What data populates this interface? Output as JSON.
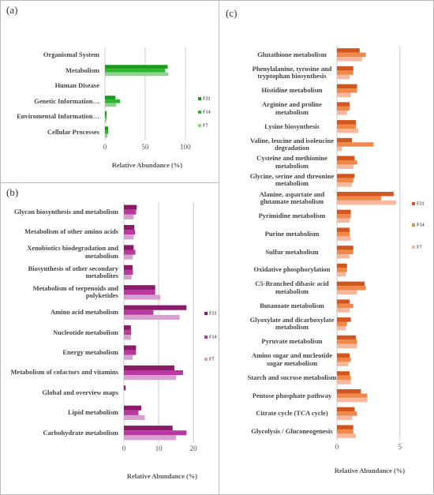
{
  "chart_data": [
    {
      "type": "barh",
      "label": "(a)",
      "xlabel": "Relative Abundance (%)",
      "categories": [
        "Organismal System",
        "Metabolism",
        "Human Disease",
        "Genetic Information…",
        "Enviromental Information…",
        "Cellular Processes"
      ],
      "series": [
        {
          "name": "F21",
          "color": "#1a9a1a",
          "values": [
            0,
            78,
            0,
            13,
            2,
            4
          ]
        },
        {
          "name": "F14",
          "color": "#2db82d",
          "values": [
            0,
            75,
            0,
            19,
            2,
            4
          ]
        },
        {
          "name": "F7",
          "color": "#90d090",
          "values": [
            0,
            79,
            0,
            14,
            2,
            3
          ]
        }
      ],
      "xlim": [
        0,
        105
      ],
      "xticks": [
        0,
        50,
        100
      ],
      "grid": true
    },
    {
      "type": "barh",
      "label": "(b)",
      "xlabel": "Relative Abundance (%)",
      "categories": [
        "Glycan biosynthesis and metabolism",
        "Metabolism of other amino acids",
        "Xenobiotics biodegradation and metabolism",
        "Biosynthesis of other secondary metabolites",
        "Metabolism of terpenoids and polyketides",
        "Amino acid metabolism",
        "Nucleotide metabolism",
        "Energy metabolism",
        "Metabolism of cofactors and vitamins",
        "Global and overview maps",
        "Lipid metabolism",
        "Carbohydrate metabolism"
      ],
      "series": [
        {
          "name": "F21",
          "color": "#8b1a6b",
          "values": [
            3.7,
            3,
            2.8,
            2.5,
            9,
            18,
            2,
            3.5,
            14.5,
            0.5,
            5,
            14
          ]
        },
        {
          "name": "F14",
          "color": "#b83aa0",
          "values": [
            3.5,
            3.2,
            3.3,
            2.6,
            9,
            8.5,
            2.1,
            3.5,
            17,
            0,
            4.2,
            18
          ]
        },
        {
          "name": "F7",
          "color": "#d8a0d0",
          "values": [
            2.8,
            2.8,
            2.5,
            2.2,
            10.5,
            16,
            2,
            2.5,
            15,
            0,
            6,
            15
          ]
        }
      ],
      "xlim": [
        0,
        22
      ],
      "xticks": [
        0,
        10,
        20
      ],
      "grid": true
    },
    {
      "type": "barh",
      "label": "(c)",
      "xlabel": "Relative Abundance (%)",
      "categories": [
        "Glutathione metabolism",
        "Phenylalanine, tyrosine and tryptophan biosynthesis",
        "Histidine metabolism",
        "Arginine and proline metabolism",
        "Lysine biosynthesis",
        "Valine, leucine and isoleucine degradation",
        "Cysteine and methionine metabolism",
        "Glycine, serine and threonine metabolism",
        "Alanine, aspartate and glutamate metabolism",
        "Pyrimidine metabolism",
        "Purine metabolism",
        "Sulfur metabolism",
        "Oxidative phosphorylation",
        "C5-Branched dibasic acid metabolism",
        "Butanoate metabolism",
        "Glyoxylate and dicarboxylate metabolism",
        "Pyruvate metabolism",
        "Amino sugar and nucleotide sugar metabolism",
        "Starch and sucrose metabolism",
        "Pentose phosphate pathway",
        "Citrate cycle (TCA cycle)",
        "Glycolysis / Gluconeogenesis"
      ],
      "series": [
        {
          "name": "F21",
          "color": "#d2561e",
          "values": [
            1.8,
            1.3,
            1.6,
            1.0,
            1.5,
            1.2,
            1.4,
            1.4,
            4.5,
            1.1,
            1.0,
            1.3,
            0.8,
            2.2,
            1.0,
            1.1,
            1.5,
            1.0,
            1.0,
            1.9,
            1.4,
            1.3
          ]
        },
        {
          "name": "F14",
          "color": "#f0884a",
          "values": [
            2.3,
            1.3,
            1.6,
            1.0,
            1.5,
            2.9,
            1.6,
            1.3,
            3.5,
            1.1,
            1.0,
            1.3,
            0.8,
            2.3,
            1.3,
            0.8,
            1.6,
            1.1,
            1.1,
            2.4,
            1.6,
            1.3
          ]
        },
        {
          "name": "F7",
          "color": "#f8b8a0",
          "values": [
            2.0,
            1.0,
            1.1,
            0.8,
            1.7,
            0.4,
            1.3,
            1.2,
            4.7,
            1.0,
            1.1,
            1.0,
            0.7,
            1.6,
            1.0,
            0.7,
            1.6,
            0.9,
            1.1,
            2.4,
            1.2,
            1.5
          ]
        }
      ],
      "xlim": [
        0,
        5.2
      ],
      "xticks": [
        0,
        5
      ],
      "grid": true
    }
  ]
}
